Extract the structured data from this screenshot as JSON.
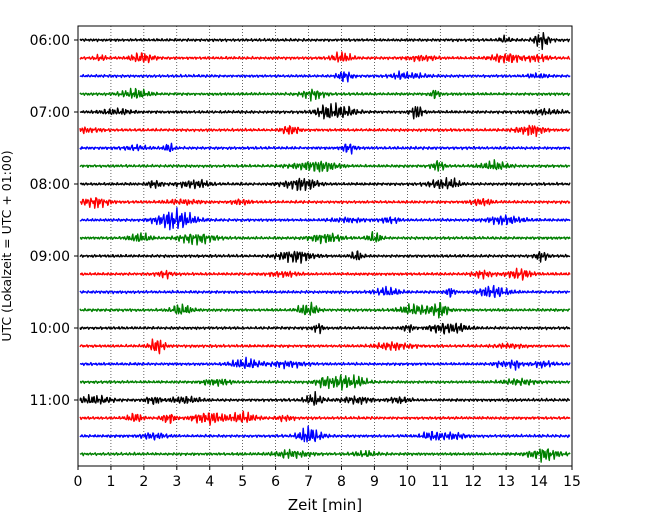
{
  "chart_data": {
    "type": "line",
    "subtype": "helicorder",
    "xlabel": "Zeit  [min]",
    "ylabel": "UTC (Lokalzeit = UTC + 01:00)",
    "xlim": [
      0,
      15
    ],
    "x_ticks": [
      "0",
      "1",
      "2",
      "3",
      "4",
      "5",
      "6",
      "7",
      "8",
      "9",
      "10",
      "11",
      "12",
      "13",
      "14",
      "15"
    ],
    "y_tick_labels": [
      "06:00",
      "07:00",
      "08:00",
      "09:00",
      "10:00",
      "11:00"
    ],
    "row_interval_minutes": 15,
    "start_time": "06:00",
    "rows": 24,
    "trace_colors": [
      "#000000",
      "#ff0000",
      "#0000ff",
      "#008000"
    ],
    "grid": "vertical dotted lines at each minute"
  }
}
